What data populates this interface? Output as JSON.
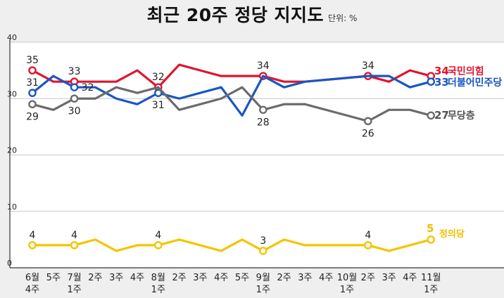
{
  "title": "최근 20주 정당 지지도",
  "unit_label": "단위: %",
  "chart_data": {
    "type": "line",
    "title": "최근 20주 정당 지지도",
    "unit": "단위: %",
    "ylim": [
      0,
      40
    ],
    "yticks": [
      0,
      10,
      20,
      30,
      40
    ],
    "grid": true,
    "categories": [
      [
        "6월",
        "4주"
      ],
      [
        "5주"
      ],
      [
        "7월",
        "1주"
      ],
      [
        "2주"
      ],
      [
        "3주"
      ],
      [
        "4주"
      ],
      [
        "8월",
        "1주"
      ],
      [
        "2주"
      ],
      [
        "3주"
      ],
      [
        "4주"
      ],
      [
        "5주"
      ],
      [
        "9월",
        "1주"
      ],
      [
        "2주"
      ],
      [
        "3주"
      ],
      [
        "4주"
      ],
      [
        "10월",
        "1주"
      ],
      [
        "2주"
      ],
      [
        "3주"
      ],
      [
        "4주"
      ],
      [
        "11월",
        "1주"
      ]
    ],
    "series": [
      {
        "name": "국민의힘",
        "end_label": "34",
        "color": "#e0142e",
        "values": [
          35,
          33,
          33,
          33,
          33,
          35,
          32,
          36,
          35,
          34,
          34,
          34,
          33,
          33,
          null,
          null,
          34,
          33,
          35,
          34
        ],
        "labeled": [
          {
            "i": 0,
            "text": "35",
            "pos": "above"
          },
          {
            "i": 2,
            "text": "33",
            "pos": "above"
          },
          {
            "i": 6,
            "text": "32",
            "pos": "above"
          },
          {
            "i": 11,
            "text": "34",
            "pos": "above"
          },
          {
            "i": 16,
            "text": "34",
            "pos": "above"
          }
        ]
      },
      {
        "name": "더불어민주당",
        "end_label": "33",
        "color": "#1a56c4",
        "values": [
          31,
          34,
          32,
          32,
          30,
          29,
          31,
          30,
          31,
          32,
          27,
          34,
          32,
          33,
          null,
          null,
          34,
          34,
          32,
          33
        ],
        "labeled": [
          {
            "i": 0,
            "text": "31",
            "pos": "above"
          },
          {
            "i": 2,
            "text": "32",
            "pos": "right"
          },
          {
            "i": 6,
            "text": "31",
            "pos": "below"
          }
        ]
      },
      {
        "name": "무당층",
        "end_label": "27",
        "color": "#6b6b6b",
        "values": [
          29,
          28,
          30,
          30,
          32,
          31,
          32,
          28,
          29,
          30,
          32,
          28,
          29,
          29,
          null,
          null,
          26,
          28,
          28,
          27
        ],
        "labeled": [
          {
            "i": 0,
            "text": "29",
            "pos": "below"
          },
          {
            "i": 2,
            "text": "30",
            "pos": "below"
          },
          {
            "i": 11,
            "text": "28",
            "pos": "below"
          },
          {
            "i": 16,
            "text": "26",
            "pos": "below"
          }
        ]
      },
      {
        "name": "정의당",
        "end_label": "5",
        "color": "#f5c400",
        "values": [
          4,
          4,
          4,
          5,
          3,
          4,
          4,
          5,
          4,
          3,
          5,
          3,
          5,
          4,
          4,
          4,
          4,
          3,
          4,
          5
        ],
        "labeled": [
          {
            "i": 0,
            "text": "4",
            "pos": "above"
          },
          {
            "i": 2,
            "text": "4",
            "pos": "above"
          },
          {
            "i": 6,
            "text": "4",
            "pos": "above"
          },
          {
            "i": 11,
            "text": "3",
            "pos": "above"
          },
          {
            "i": 16,
            "text": "4",
            "pos": "above"
          }
        ]
      }
    ]
  }
}
